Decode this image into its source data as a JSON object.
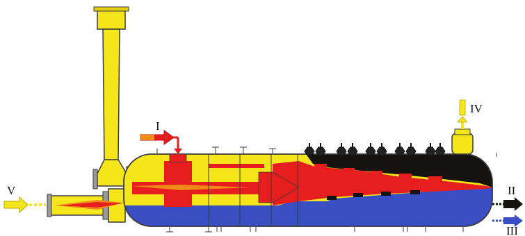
{
  "labels": {
    "stream_I": "I",
    "stream_II": "II",
    "stream_III": "III",
    "stream_IV": "IV",
    "stream_V": "V"
  },
  "colors": {
    "light_phase": "#f5e61c",
    "hot_zone": "#e61e1e",
    "heavy_phase": "#14130f",
    "water_phase": "#3a4ec4",
    "flame_orange": "#f08a1a",
    "outline": "#3a3a3a"
  }
}
